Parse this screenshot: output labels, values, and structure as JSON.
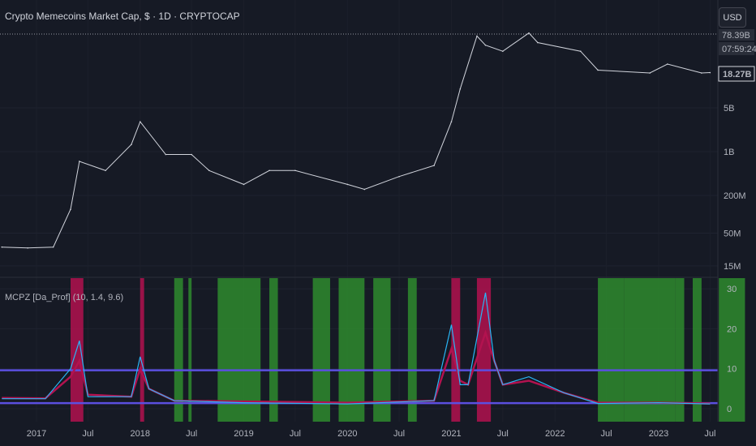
{
  "header": {
    "title": "Crypto Memecoins Market Cap, $ · 1D · CRYPTOCAP",
    "currency_button": "USD"
  },
  "price_scale": {
    "ticks": [
      "5B",
      "1B",
      "200M",
      "50M",
      "15M"
    ],
    "high_label": "78.39B",
    "countdown": "07:59:24",
    "last_price": "18.27B"
  },
  "indicator": {
    "title": "MCPZ [Da_Prof] (10, 1.4, 9.6)",
    "ticks": [
      "30",
      "20",
      "10",
      "0"
    ],
    "upper_level": 9.6,
    "lower_level": 1.4
  },
  "time_axis": {
    "labels": [
      "2017",
      "Jul",
      "2018",
      "Jul",
      "2019",
      "Jul",
      "2020",
      "Jul",
      "2021",
      "Jul",
      "2022",
      "Jul",
      "2023",
      "Jul"
    ]
  },
  "colors": {
    "price": "#d1d4dc",
    "osc_fast": "#29b6f6",
    "osc_slow": "#b2124f",
    "band": "#5b4fe0",
    "green_zone": "#2e8b2e",
    "red_zone": "#b2124f",
    "background": "#161a25"
  },
  "chart_data": [
    {
      "type": "line",
      "title": "Crypto Memecoins Market Cap, $ · 1D · CRYPTOCAP",
      "ylabel": "",
      "yscale": "log",
      "ylim": [
        10000000,
        200000000000
      ],
      "x": [
        "2016-09",
        "2016-12",
        "2017-03",
        "2017-05",
        "2017-06",
        "2017-09",
        "2017-12",
        "2018-01",
        "2018-04",
        "2018-07",
        "2018-09",
        "2019-01",
        "2019-04",
        "2019-07",
        "2020-01",
        "2020-03",
        "2020-07",
        "2020-11",
        "2021-01",
        "2021-02",
        "2021-04",
        "2021-05",
        "2021-07",
        "2021-10",
        "2021-11",
        "2022-04",
        "2022-06",
        "2022-12",
        "2023-02",
        "2023-06",
        "2023-07"
      ],
      "values": [
        30000000,
        29000000,
        30000000,
        120000000,
        700000000,
        500000000,
        1300000000,
        3000000000,
        900000000,
        900000000,
        500000000,
        300000000,
        500000000,
        500000000,
        300000000,
        250000000,
        400000000,
        600000000,
        3000000000,
        10000000000,
        70000000000,
        50000000000,
        40000000000,
        78390000000,
        55000000000,
        40000000000,
        20000000000,
        18000000000,
        25000000000,
        18000000000,
        18270000000
      ]
    },
    {
      "type": "line",
      "title": "MCPZ [Da_Prof] (10, 1.4, 9.6)",
      "ylim": [
        -2,
        32
      ],
      "x": [
        "2016-09",
        "2017-02",
        "2017-05",
        "2017-06",
        "2017-07",
        "2017-12",
        "2018-01",
        "2018-02",
        "2018-05",
        "2019-01",
        "2020-01",
        "2020-11",
        "2021-01",
        "2021-02",
        "2021-03",
        "2021-05",
        "2021-06",
        "2021-07",
        "2021-10",
        "2022-02",
        "2022-06",
        "2023-01",
        "2023-07"
      ],
      "series": [
        {
          "name": "",
          "values": [
            2.5,
            2.5,
            10,
            17,
            3,
            3,
            13,
            5,
            2,
            1.5,
            1.2,
            2,
            21,
            6,
            6,
            29,
            12,
            6,
            8,
            4,
            1.3,
            1.5,
            1.2
          ]
        },
        {
          "name": "",
          "values": [
            2.7,
            2.6,
            8,
            12,
            3.5,
            3,
            10,
            5,
            2,
            1.8,
            1.5,
            2,
            15,
            7,
            6,
            19,
            12,
            6,
            7,
            4,
            1.5,
            1.5,
            1.3
          ]
        }
      ],
      "levels": [
        9.6,
        1.4
      ],
      "green_zones": [
        [
          "2018-05",
          "2018-06"
        ],
        [
          "2018-06-20",
          "2018-07"
        ],
        [
          "2018-10",
          "2019-03"
        ],
        [
          "2019-04",
          "2019-05"
        ],
        [
          "2019-09",
          "2019-11"
        ],
        [
          "2019-12",
          "2020-03"
        ],
        [
          "2020-04",
          "2020-06"
        ],
        [
          "2020-08",
          "2020-09"
        ],
        [
          "2022-06",
          "2022-09"
        ],
        [
          "2022-09",
          "2023-01"
        ],
        [
          "2023-01",
          "2023-03"
        ],
        [
          "2023-03",
          "2023-04"
        ],
        [
          "2023-05",
          "2023-06"
        ],
        [
          "2023-08",
          "2023-11"
        ]
      ],
      "red_zones": [
        [
          "2017-05",
          "2017-06-15"
        ],
        [
          "2018-01",
          "2018-01-15"
        ],
        [
          "2021-01",
          "2021-02"
        ],
        [
          "2021-04",
          "2021-05-20"
        ]
      ]
    }
  ]
}
